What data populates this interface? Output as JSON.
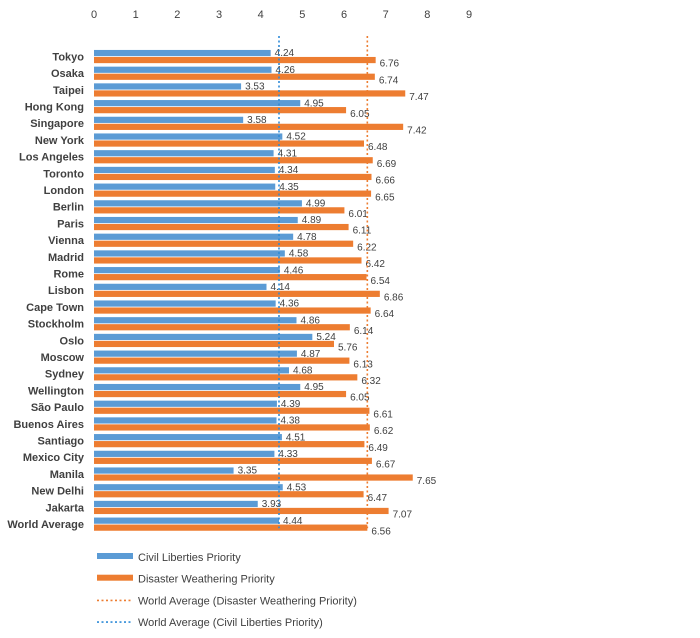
{
  "chart_data": {
    "type": "bar",
    "orientation": "horizontal",
    "title": "",
    "xlabel": "",
    "ylabel": "",
    "xlim": [
      0,
      9
    ],
    "xticks": [
      0,
      1,
      2,
      3,
      4,
      5,
      6,
      7,
      8,
      9
    ],
    "axis_position": "top",
    "grid": false,
    "legend_position": "bottom-left",
    "categories": [
      "Tokyo",
      "Osaka",
      "Taipei",
      "Hong Kong",
      "Singapore",
      "New York",
      "Los Angeles",
      "Toronto",
      "London",
      "Berlin",
      "Paris",
      "Vienna",
      "Madrid",
      "Rome",
      "Lisbon",
      "Cape Town",
      "Stockholm",
      "Oslo",
      "Moscow",
      "Sydney",
      "Wellington",
      "São Paulo",
      "Buenos Aires",
      "Santiago",
      "Mexico City",
      "Manila",
      "New Delhi",
      "Jakarta",
      "World Average"
    ],
    "series": [
      {
        "name": "Civil Liberties Priority",
        "color": "#5b9bd5",
        "values": [
          4.24,
          4.26,
          3.53,
          4.95,
          3.58,
          4.52,
          4.31,
          4.34,
          4.35,
          4.99,
          4.89,
          4.78,
          4.58,
          4.46,
          4.14,
          4.36,
          4.86,
          5.24,
          4.87,
          4.68,
          4.95,
          4.39,
          4.38,
          4.51,
          4.33,
          3.35,
          4.53,
          3.93,
          4.44
        ],
        "labels": [
          "4.24",
          "4.26",
          "3.53",
          "4.95",
          "3.58",
          "4.52",
          "4.31",
          "4.34",
          "4.35",
          "4.99",
          "4.89",
          "4.78",
          "4.58",
          "4.46",
          "4.14",
          "4.36",
          "4.86",
          "5.24",
          "4.87",
          "4.68",
          "4.95",
          "4.39",
          "4.38",
          "4.51",
          "4.33",
          "3.35",
          "4.53",
          "3.93",
          "4.44"
        ]
      },
      {
        "name": "Disaster Weathering Priority",
        "color": "#ed7d31",
        "values": [
          6.76,
          6.74,
          7.47,
          6.05,
          7.42,
          6.48,
          6.69,
          6.66,
          6.65,
          6.01,
          6.11,
          6.22,
          6.42,
          6.54,
          6.86,
          6.64,
          6.14,
          5.76,
          6.13,
          6.32,
          6.05,
          6.61,
          6.62,
          6.49,
          6.67,
          7.65,
          6.47,
          7.07,
          6.56
        ],
        "labels": [
          "6.76",
          "6.74",
          "7.47",
          "6.05",
          "7.42",
          "6.48",
          "6.69",
          "6.66",
          "6.65",
          "6.01",
          "6.11",
          "6.22",
          "6.42",
          "6.54",
          "6.86",
          "6.64",
          "6.14",
          "5.76",
          "6.13",
          "6.32",
          "6.05",
          "6.61",
          "6.62",
          "6.49",
          "6.67",
          "7.65",
          "6.47",
          "7.07",
          "6.56"
        ]
      }
    ],
    "reference_lines": [
      {
        "name": "World Average (Disaster Weathering Priority)",
        "value": 6.56,
        "color": "#ed7d31",
        "style": "dotted"
      },
      {
        "name": "World Average (Civil Liberties Priority)",
        "value": 4.44,
        "color": "#2e8bd8",
        "style": "dotted"
      }
    ],
    "legend": [
      {
        "label": "Civil Liberties Priority",
        "kind": "bar",
        "color": "#5b9bd5"
      },
      {
        "label": "Disaster Weathering Priority",
        "kind": "bar",
        "color": "#ed7d31"
      },
      {
        "label": "World Average (Disaster Weathering Priority)",
        "kind": "dotted-line",
        "color": "#ed7d31"
      },
      {
        "label": "World Average (Civil Liberties Priority)",
        "kind": "dotted-line",
        "color": "#2e8bd8"
      }
    ]
  }
}
